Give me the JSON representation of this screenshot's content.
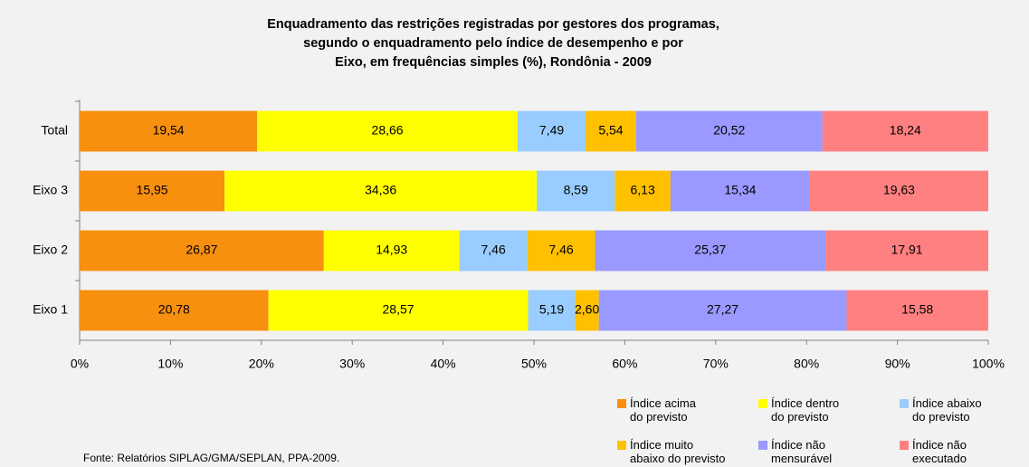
{
  "chart_data": {
    "type": "stacked_bar_horizontal",
    "title": [
      "Enquadramento das restrições registradas por gestores dos programas,",
      "segundo o enquadramento pelo índice de desempenho e por",
      "Eixo, em frequências simples (%), Rondônia - 2009"
    ],
    "categories": [
      "Total",
      "Eixo 3",
      "Eixo 2",
      "Eixo 1"
    ],
    "series": [
      {
        "name": "Índice acima\ndo previsto",
        "color": "#F78F0F",
        "values": [
          19.54,
          15.95,
          26.87,
          20.78
        ],
        "value_labels": [
          "19,54",
          "15,95",
          "26,87",
          "20,78"
        ]
      },
      {
        "name": "Índice dentro\ndo previsto",
        "color": "#FFFF00",
        "values": [
          28.66,
          34.36,
          14.93,
          28.57
        ],
        "value_labels": [
          "28,66",
          "34,36",
          "14,93",
          "28,57"
        ]
      },
      {
        "name": "Índice abaixo\ndo previsto",
        "color": "#99CCFF",
        "values": [
          7.49,
          8.59,
          7.46,
          5.19
        ],
        "value_labels": [
          "7,49",
          "8,59",
          "7,46",
          "5,19"
        ]
      },
      {
        "name": "Índice muito\nabaixo do previsto",
        "color": "#FFC000",
        "values": [
          5.54,
          6.13,
          7.46,
          2.6
        ],
        "value_labels": [
          "5,54",
          "6,13",
          "7,46",
          "2,60"
        ]
      },
      {
        "name": "Índice não\nmensurável",
        "color": "#9999FF",
        "values": [
          20.52,
          15.34,
          25.37,
          27.27
        ],
        "value_labels": [
          "20,52",
          "15,34",
          "25,37",
          "27,27"
        ]
      },
      {
        "name": "Índice não\nexecutado",
        "color": "#FF8080",
        "values": [
          18.24,
          19.63,
          17.91,
          15.58
        ],
        "value_labels": [
          "18,24",
          "19,63",
          "17,91",
          "15,58"
        ]
      }
    ],
    "xlim": [
      0,
      100
    ],
    "xticks": [
      {
        "value": 0,
        "label": "0%"
      },
      {
        "value": 10,
        "label": "10%"
      },
      {
        "value": 20,
        "label": "20%"
      },
      {
        "value": 30,
        "label": "30%"
      },
      {
        "value": 40,
        "label": "40%"
      },
      {
        "value": 50,
        "label": "50%"
      },
      {
        "value": 60,
        "label": "60%"
      },
      {
        "value": 70,
        "label": "70%"
      },
      {
        "value": 80,
        "label": "80%"
      },
      {
        "value": 90,
        "label": "90%"
      },
      {
        "value": 100,
        "label": "100%"
      }
    ],
    "source": "Fonte: Relatórios SIPLAG/GMA/SEPLAN, PPA-2009."
  }
}
